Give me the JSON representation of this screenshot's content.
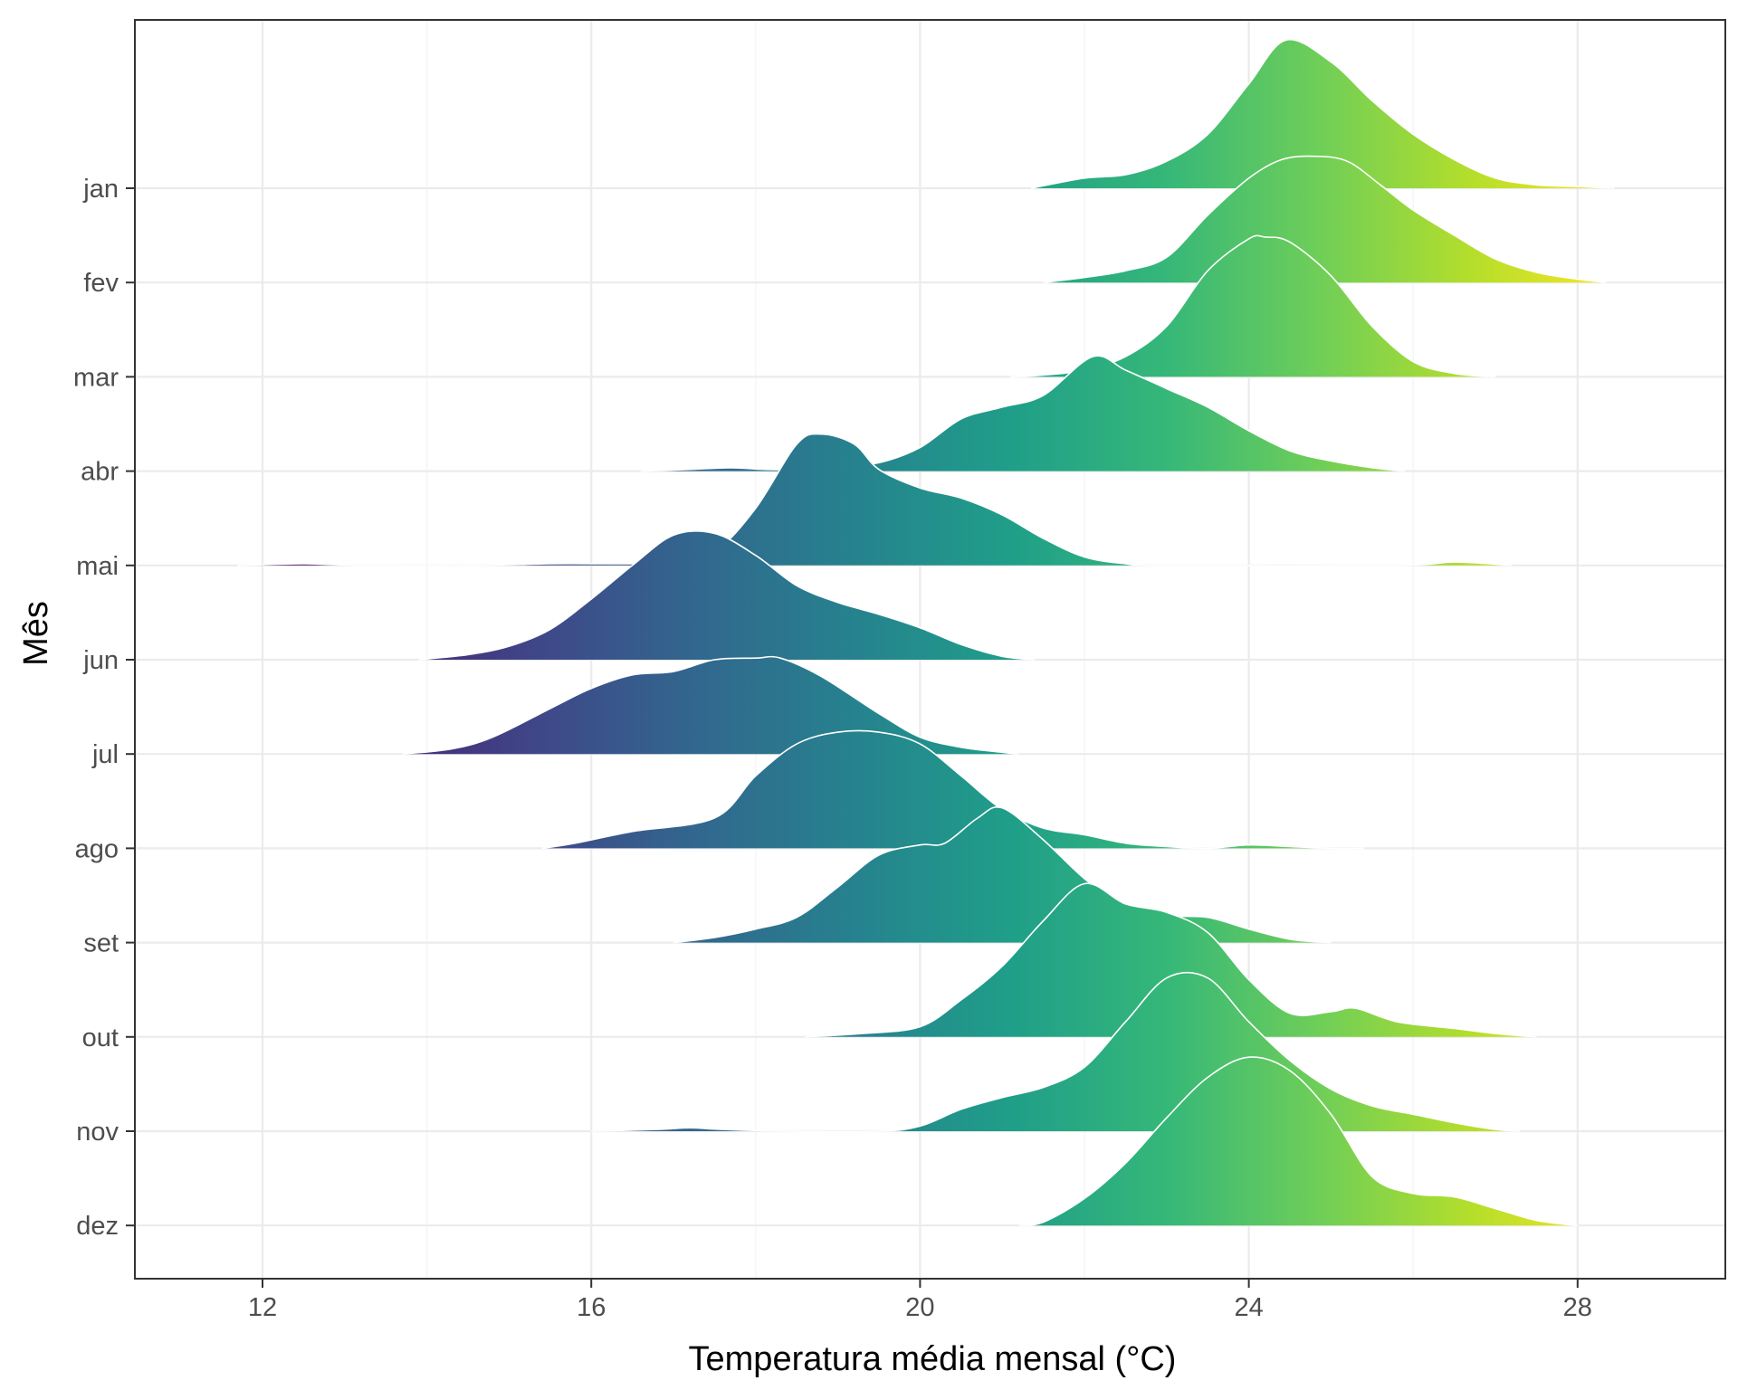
{
  "chart_data": {
    "type": "ridgeline",
    "xlabel": "Temperatura média mensal (°C)",
    "ylabel": "Mês",
    "xlim": [
      10.4,
      29.6
    ],
    "xticks": [
      12,
      16,
      20,
      24,
      28
    ],
    "grid": true,
    "legend": "none",
    "colorscale": "viridis",
    "color_range": [
      11.7,
      28.6
    ],
    "categories": [
      "jan",
      "fev",
      "mar",
      "abr",
      "mai",
      "jun",
      "jul",
      "ago",
      "set",
      "out",
      "nov",
      "dez"
    ],
    "series": [
      {
        "name": "jan",
        "x": [
          21.35,
          22.0,
          22.5,
          23.0,
          23.5,
          24.0,
          24.45,
          25.0,
          25.5,
          26.0,
          26.5,
          27.0,
          27.5,
          28.0,
          28.45
        ],
        "y": [
          0.0,
          0.06,
          0.08,
          0.16,
          0.32,
          0.62,
          0.88,
          0.75,
          0.52,
          0.32,
          0.17,
          0.06,
          0.02,
          0.01,
          0.0
        ]
      },
      {
        "name": "fev",
        "x": [
          21.5,
          22.0,
          22.5,
          23.0,
          23.5,
          24.0,
          24.4,
          24.8,
          25.2,
          25.6,
          26.0,
          26.5,
          27.0,
          27.5,
          28.0,
          28.35
        ],
        "y": [
          0.0,
          0.03,
          0.07,
          0.15,
          0.4,
          0.62,
          0.73,
          0.75,
          0.72,
          0.58,
          0.43,
          0.28,
          0.14,
          0.06,
          0.02,
          0.0
        ]
      },
      {
        "name": "mar",
        "x": [
          21.1,
          21.5,
          22.0,
          22.5,
          23.0,
          23.5,
          24.0,
          24.2,
          24.5,
          25.0,
          25.5,
          26.0,
          26.5,
          27.0
        ],
        "y": [
          0.0,
          0.01,
          0.04,
          0.12,
          0.3,
          0.63,
          0.82,
          0.83,
          0.8,
          0.6,
          0.3,
          0.09,
          0.02,
          0.0
        ]
      },
      {
        "name": "abr",
        "x": [
          16.6,
          17.2,
          17.7,
          18.1,
          18.5,
          19.0,
          19.5,
          20.0,
          20.5,
          21.0,
          21.5,
          22.1,
          22.5,
          23.0,
          23.5,
          24.0,
          24.5,
          25.0,
          25.5,
          25.9
        ],
        "y": [
          0.0,
          0.01,
          0.02,
          0.01,
          0.01,
          0.03,
          0.05,
          0.14,
          0.31,
          0.38,
          0.45,
          0.68,
          0.6,
          0.49,
          0.38,
          0.24,
          0.12,
          0.06,
          0.02,
          0.0
        ]
      },
      {
        "name": "mai",
        "x": [
          11.7,
          12.5,
          13.2,
          14.6,
          15.5,
          16.5,
          17.0,
          17.5,
          18.0,
          18.5,
          18.8,
          19.2,
          19.5,
          20.0,
          20.5,
          21.0,
          21.5,
          22.0,
          22.5,
          23.0,
          25.8,
          26.5,
          27.2
        ],
        "y": [
          0.0,
          0.01,
          0.0,
          0.0,
          0.01,
          0.01,
          0.02,
          0.08,
          0.34,
          0.72,
          0.78,
          0.72,
          0.57,
          0.46,
          0.4,
          0.3,
          0.16,
          0.05,
          0.01,
          0.0,
          0.0,
          0.02,
          0.0
        ]
      },
      {
        "name": "jun",
        "x": [
          13.9,
          14.5,
          15.0,
          15.5,
          16.0,
          16.5,
          17.0,
          17.5,
          18.0,
          18.5,
          19.0,
          19.5,
          20.0,
          20.5,
          21.0,
          21.4
        ],
        "y": [
          0.0,
          0.03,
          0.08,
          0.18,
          0.36,
          0.56,
          0.74,
          0.75,
          0.62,
          0.44,
          0.34,
          0.27,
          0.19,
          0.09,
          0.02,
          0.0
        ]
      },
      {
        "name": "jul",
        "x": [
          13.7,
          14.3,
          14.8,
          15.5,
          16.0,
          16.5,
          17.0,
          17.5,
          18.0,
          18.3,
          18.8,
          19.5,
          20.0,
          20.5,
          21.0,
          21.2
        ],
        "y": [
          0.0,
          0.03,
          0.1,
          0.27,
          0.39,
          0.47,
          0.49,
          0.56,
          0.57,
          0.57,
          0.46,
          0.24,
          0.1,
          0.04,
          0.01,
          0.0
        ]
      },
      {
        "name": "ago",
        "x": [
          15.4,
          15.8,
          16.5,
          17.5,
          18.0,
          18.5,
          19.0,
          19.5,
          20.0,
          20.5,
          21.0,
          21.5,
          22.0,
          22.5,
          23.0,
          23.5,
          24.0,
          24.5,
          25.0,
          25.4
        ],
        "y": [
          0.0,
          0.03,
          0.1,
          0.18,
          0.43,
          0.62,
          0.69,
          0.69,
          0.62,
          0.43,
          0.23,
          0.12,
          0.08,
          0.03,
          0.01,
          0.0,
          0.02,
          0.01,
          0.0,
          0.0
        ]
      },
      {
        "name": "set",
        "x": [
          17.0,
          17.5,
          18.0,
          18.5,
          19.0,
          19.5,
          20.0,
          20.3,
          20.7,
          21.0,
          21.5,
          22.0,
          22.5,
          23.0,
          23.5,
          24.0,
          24.5,
          25.0
        ],
        "y": [
          0.0,
          0.03,
          0.08,
          0.15,
          0.33,
          0.52,
          0.58,
          0.59,
          0.74,
          0.8,
          0.61,
          0.38,
          0.21,
          0.16,
          0.15,
          0.08,
          0.02,
          0.0
        ]
      },
      {
        "name": "out",
        "x": [
          18.6,
          19.3,
          20.0,
          20.5,
          21.0,
          21.5,
          22.0,
          22.5,
          23.0,
          23.5,
          24.0,
          24.5,
          25.0,
          25.3,
          25.8,
          26.5,
          27.0,
          27.5
        ],
        "y": [
          0.0,
          0.02,
          0.06,
          0.22,
          0.42,
          0.69,
          0.91,
          0.79,
          0.74,
          0.62,
          0.34,
          0.14,
          0.15,
          0.17,
          0.09,
          0.05,
          0.02,
          0.0
        ]
      },
      {
        "name": "nov",
        "x": [
          16.0,
          16.8,
          17.2,
          17.6,
          18.4,
          19.5,
          20.0,
          20.5,
          21.0,
          21.5,
          22.0,
          22.5,
          23.0,
          23.5,
          24.0,
          24.5,
          25.0,
          25.5,
          26.0,
          26.5,
          27.0,
          27.3
        ],
        "y": [
          0.0,
          0.01,
          0.02,
          0.01,
          0.0,
          0.0,
          0.03,
          0.13,
          0.2,
          0.26,
          0.38,
          0.65,
          0.91,
          0.91,
          0.65,
          0.42,
          0.25,
          0.15,
          0.1,
          0.05,
          0.01,
          0.0
        ]
      },
      {
        "name": "dez",
        "x": [
          21.2,
          21.5,
          22.0,
          22.5,
          23.0,
          23.5,
          24.0,
          24.5,
          25.0,
          25.5,
          26.0,
          26.5,
          27.0,
          27.5,
          28.0
        ],
        "y": [
          0.0,
          0.02,
          0.16,
          0.37,
          0.64,
          0.88,
          1.0,
          0.92,
          0.66,
          0.29,
          0.19,
          0.17,
          0.1,
          0.03,
          0.0
        ]
      }
    ]
  }
}
